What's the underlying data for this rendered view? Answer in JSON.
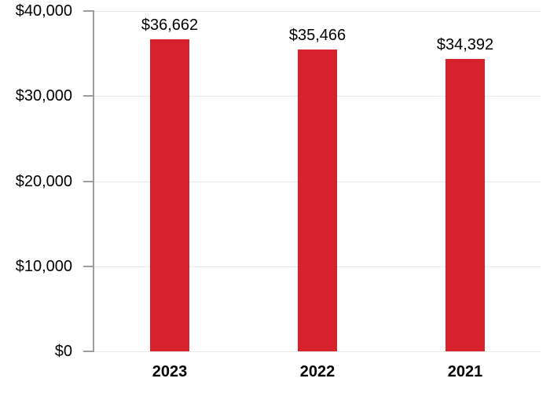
{
  "chart_data": {
    "type": "bar",
    "categories": [
      "2023",
      "2022",
      "2021"
    ],
    "values": [
      36662,
      35466,
      34392
    ],
    "value_labels": [
      "$36,662",
      "$35,466",
      "$34,392"
    ],
    "title": "",
    "xlabel": "",
    "ylabel": "",
    "ylim": [
      0,
      40000
    ],
    "y_ticks": [
      0,
      10000,
      20000,
      30000,
      40000
    ],
    "y_tick_labels": [
      "$0",
      "$10,000",
      "$20,000",
      "$30,000",
      "$40,000"
    ],
    "grid": "horizontal-gridlines-on",
    "legend": "none",
    "bar_color": "#D7222E",
    "grid_color": "#E7E7E7",
    "axis_color": "#9C9C9C",
    "text_color": "#000000"
  }
}
